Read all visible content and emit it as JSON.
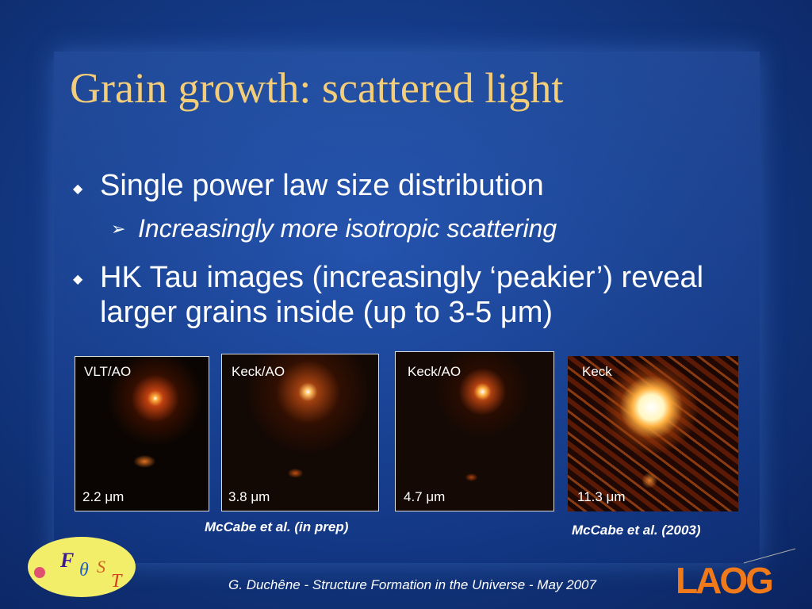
{
  "slide": {
    "title": "Grain growth: scattered light",
    "bullets": [
      {
        "text": "Single power law size distribution",
        "sub": [
          "Increasingly more isotropic scattering"
        ]
      },
      {
        "text": "HK Tau images (increasingly ‘peakier’) reveal larger grains inside (up to 3-5 μm)"
      }
    ],
    "images": [
      {
        "instrument": "VLT/AO",
        "wavelength": "2.2 μm"
      },
      {
        "instrument": "Keck/AO",
        "wavelength": "3.8 μm"
      },
      {
        "instrument": "Keck/AO",
        "wavelength": "4.7 μm"
      },
      {
        "instrument": "Keck",
        "wavelength": "11.3 μm"
      }
    ],
    "citations": [
      "McCabe et al. (in prep)",
      "McCabe et al. (2003)"
    ],
    "footer": "G. Duchêne - Structure Formation in the Universe - May 2007",
    "logos": {
      "fost": [
        "F",
        "θ",
        "S",
        "T"
      ],
      "laog": "LAOG"
    }
  }
}
